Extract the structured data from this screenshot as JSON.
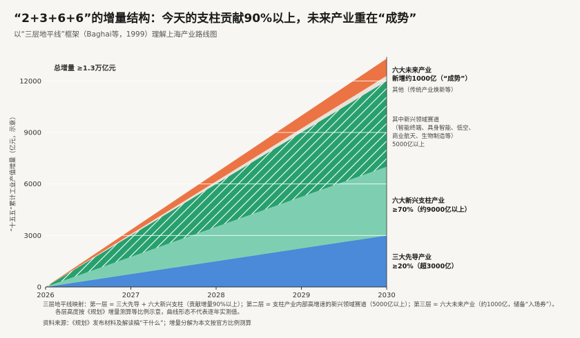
{
  "header": {
    "title": "“2+3+6+6”的增量结构：今天的支柱贡献90%以上，未来产业重在“成势”",
    "subtitle": "以“三层地平线”框架（Baghai等，1999）理解上海产业路线图"
  },
  "chart_data": {
    "type": "area",
    "x": [
      2026,
      2030
    ],
    "x_ticks": [
      "2026",
      "2027",
      "2028",
      "2029",
      "2030"
    ],
    "y_ticks": [
      "0",
      "3000",
      "6000",
      "9000",
      "12000"
    ],
    "ylim": [
      0,
      13500
    ],
    "ylabel": "“十五五”累计工业产值增量（亿元，示意）",
    "total_label": "总增量 ≥1.3万亿元",
    "series": [
      {
        "name": "三大先导产业",
        "start": 0,
        "end": 3000,
        "color": "#4a8ad8"
      },
      {
        "name": "六大新兴支柱产业",
        "start": 0,
        "end": 4000,
        "color": "#7ecfb2"
      },
      {
        "name": "其中新兴领域赛道",
        "start": 0,
        "end": 5000,
        "color": "#27a06e",
        "hatched": true
      },
      {
        "name": "其他（传统产业焕新等）",
        "start": 0,
        "end": 300,
        "color": "#e7e2da"
      },
      {
        "name": "六大未来产业",
        "start": 0,
        "end": 1000,
        "color": "#ec7444"
      }
    ]
  },
  "annotations": {
    "future_title": "六大未来产业",
    "future_sub": "新增约1000亿（“成势”）",
    "other": "其他（传统产业焕新等）",
    "emerging_title": "其中新兴领域赛道",
    "emerging_l1": "（智能终端、具身智能、低空、",
    "emerging_l2": "商业航天、生物制造等）",
    "emerging_l3": "5000亿以上",
    "pillar_title": "六大新兴支柱产业",
    "pillar_sub": "≥70%（约9000亿以上）",
    "leading_title": "三大先导产业",
    "leading_sub": "≥20%（超3000亿）"
  },
  "footnote": {
    "line1": "三层地平线映射：第一层 = 三大先导 + 六大新兴支柱（贡献增量90%以上）；第二层 = 支柱产业内部高增速的新兴领域赛道（5000亿以上）；第三层 = 六大未来产业（约1000亿，储备“入场券”）。",
    "line2": "各层高度按《规划》增量测算等比例示意，曲线形态不代表逐年实测值。",
    "source": "资料来源：《规划》发布材料及解读稿“干什么”；增量分解为本文按官方比例测算"
  },
  "colors": {
    "leading": "#4a8ad8",
    "pillar": "#7ecfb2",
    "emerging": "#27a06e",
    "other": "#e7e2da",
    "future": "#ec7444"
  }
}
